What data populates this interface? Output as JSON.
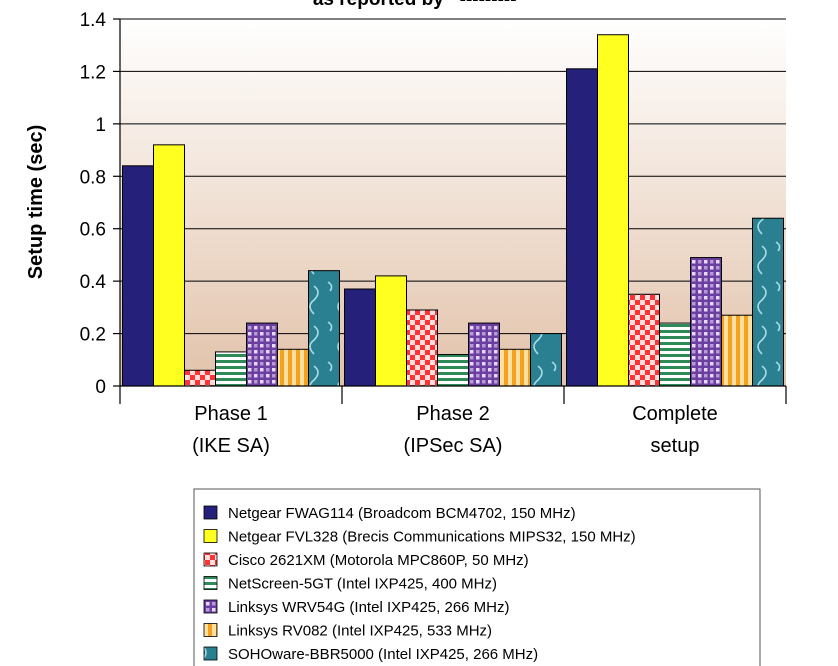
{
  "chart_data": {
    "type": "bar",
    "title": "as reported by ‘ --------- ’",
    "ylabel": "Setup time (sec)",
    "xlabel": "",
    "ylim": [
      0,
      1.4
    ],
    "yticks": [
      "0",
      "0.2",
      "0.4",
      "0.6",
      "0.8",
      "1",
      "1.2",
      "1.4"
    ],
    "categories": [
      [
        "Phase 1",
        "(IKE SA)"
      ],
      [
        "Phase 2",
        "(IPSec SA)"
      ],
      [
        "Complete",
        "setup"
      ]
    ],
    "grid": "horizontal",
    "legend_position": "bottom",
    "series": [
      {
        "name": "Netgear FWAG114 (Broadcom BCM4702, 150 MHz)",
        "values": [
          0.84,
          0.37,
          1.21
        ],
        "color": "#25207a",
        "pattern": "solid"
      },
      {
        "name": "Netgear FVL328 (Brecis Communications MIPS32, 150 MHz)",
        "values": [
          0.92,
          0.42,
          1.34
        ],
        "color": "#ffff20",
        "pattern": "solid"
      },
      {
        "name": "Cisco 2621XM (Motorola MPC860P, 50 MHz)",
        "values": [
          0.06,
          0.29,
          0.35
        ],
        "color": "#ff3333",
        "pattern": "checker"
      },
      {
        "name": "NetScreen-5GT (Intel IXP425, 400 MHz)",
        "values": [
          0.13,
          0.12,
          0.24
        ],
        "color": "#2e8b57",
        "pattern": "hstripes"
      },
      {
        "name": "Linksys WRV54G (Intel IXP425, 266 MHz)",
        "values": [
          0.24,
          0.24,
          0.49
        ],
        "color": "#6a3fa0",
        "pattern": "diamonds"
      },
      {
        "name": "Linksys RV082 (Intel IXP425, 533 MHz)",
        "values": [
          0.14,
          0.14,
          0.27
        ],
        "color": "#f4a020",
        "pattern": "vstripes"
      },
      {
        "name": "SOHOware-BBR5000 (Intel IXP425, 266 MHz)",
        "values": [
          0.44,
          0.2,
          0.64
        ],
        "color": "#2a7f90",
        "pattern": "waves"
      }
    ]
  }
}
